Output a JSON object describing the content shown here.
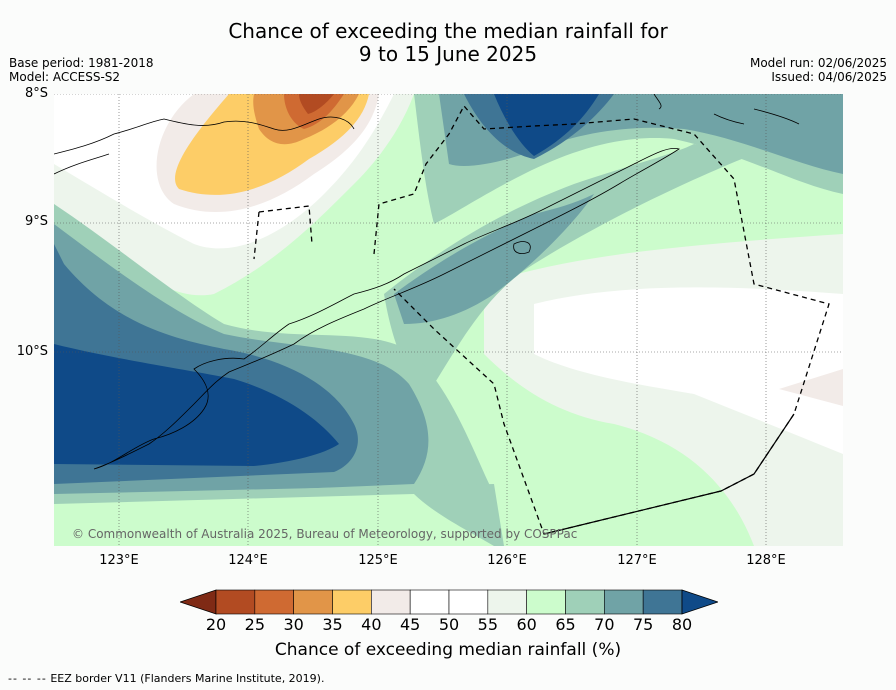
{
  "title": {
    "line1": "Chance of exceeding the median rainfall for",
    "line2": "9 to 15 June 2025"
  },
  "meta": {
    "base_period": "Base period: 1981-2018",
    "model": "Model: ACCESS-S2",
    "model_run": "Model run: 02/06/2025",
    "issued": "Issued: 04/06/2025"
  },
  "map": {
    "lat_labels": [
      "8°S",
      "9°S",
      "10°S"
    ],
    "lon_labels": [
      "123°E",
      "124°E",
      "125°E",
      "126°E",
      "127°E",
      "128°E"
    ],
    "copyright": "© Commonwealth of Australia 2025, Bureau of Meteorology, supported by COSPPac"
  },
  "colorbar": {
    "ticks": [
      "20",
      "25",
      "30",
      "35",
      "40",
      "45",
      "50",
      "55",
      "60",
      "65",
      "70",
      "75",
      "80"
    ],
    "colors": [
      "#7f2a15",
      "#b24b22",
      "#cf6a32",
      "#e19548",
      "#fdcd67",
      "#f2ebe8",
      "#ffffff",
      "#ffffff",
      "#edf5ec",
      "#ccfccc",
      "#9fd0b8",
      "#70a3a6",
      "#3f7595",
      "#0f4a88"
    ],
    "title": "Chance of exceeding median rainfall (%)"
  },
  "footer": {
    "legend_marker": "--  --  --",
    "legend_text": "EEZ border V11 (Flanders Marine Institute, 2019)."
  }
}
